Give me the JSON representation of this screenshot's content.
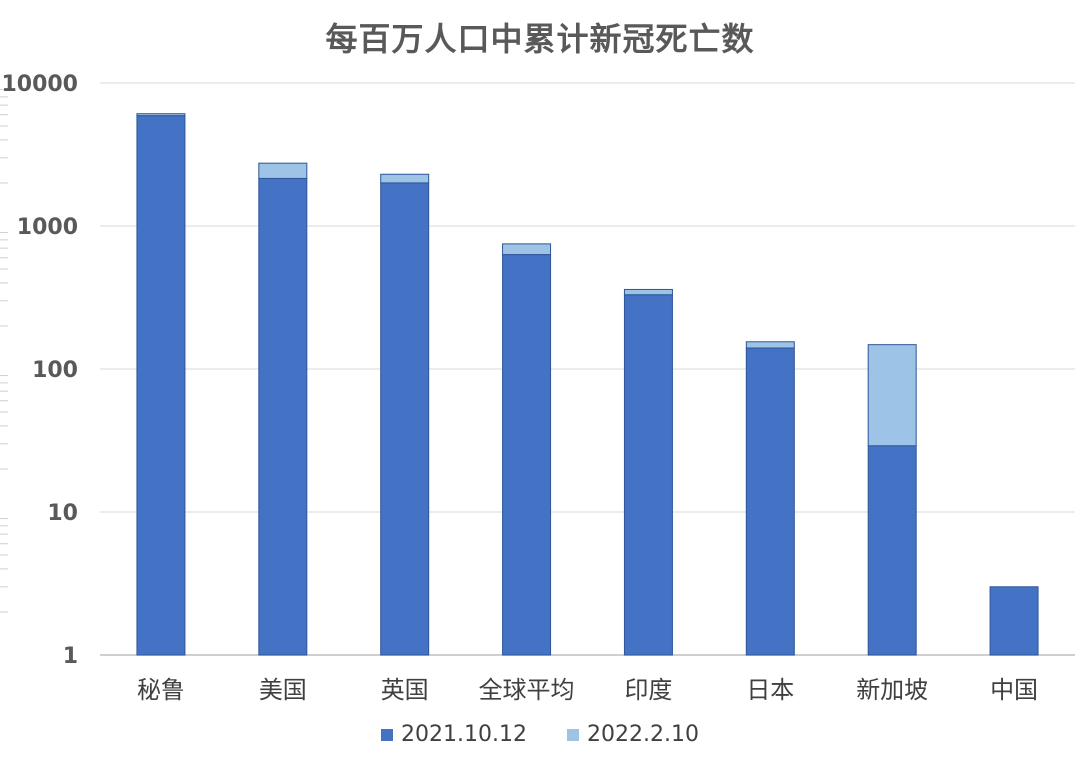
{
  "chart_data": {
    "type": "bar",
    "stacked": true,
    "title": "每百万人口中累计新冠死亡数",
    "y_scale": "log",
    "ylim": [
      1,
      10000
    ],
    "yticks": [
      "1",
      "10",
      "100",
      "1000",
      "10000"
    ],
    "ytick_values": [
      1,
      10,
      100,
      1000,
      10000
    ],
    "categories": [
      "秘鲁",
      "美国",
      "英国",
      "全球平均",
      "印度",
      "日本",
      "新加坡",
      "中国"
    ],
    "series": [
      {
        "name": "2021.10.12",
        "color": "#4472C4",
        "values": [
          5900,
          2150,
          2000,
          630,
          330,
          140,
          29,
          3
        ]
      },
      {
        "name": "2022.2.10",
        "color": "#9DC3E6",
        "cumulative_values": [
          6100,
          2750,
          2300,
          750,
          360,
          155,
          148,
          3
        ]
      }
    ],
    "grid": true,
    "legend_position": "bottom"
  }
}
